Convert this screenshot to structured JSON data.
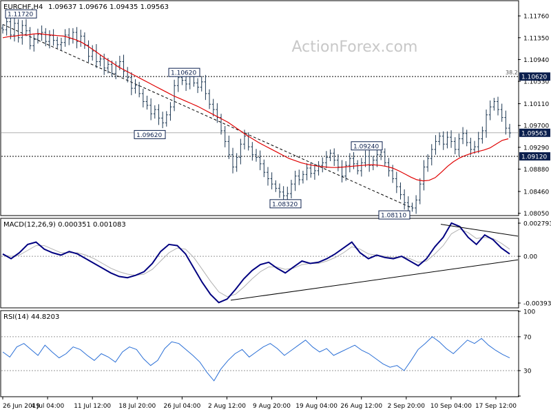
{
  "watermark": "ActionForex.com",
  "chart_data": [
    {
      "type": "candlestick",
      "title": "EURCHF,H4",
      "ohlc_label": "1.09637 1.09676 1.09435 1.09563",
      "ylim": [
        1.0802,
        1.1202
      ],
      "y_ticks": [
        "1.11760",
        "1.11350",
        "1.10940",
        "1.10530",
        "1.10110",
        "1.09700",
        "1.09290",
        "1.08880",
        "1.08460",
        "1.08050"
      ],
      "current_price": "1.09563",
      "levels": [
        {
          "label": "1.10620",
          "value": 1.1062,
          "fib": "38.2"
        },
        {
          "label": "1.09120",
          "value": 1.0912
        }
      ],
      "annotations": [
        {
          "text": "1.11720",
          "x": "26 Jun 2019",
          "value": 1.1172
        },
        {
          "text": "1.10620",
          "x": "26 Jul 04:00",
          "value": 1.1062
        },
        {
          "text": "1.09620",
          "x": "22 Jul 00:00",
          "value": 1.0962
        },
        {
          "text": "1.08320",
          "x": "9 Aug 20:00",
          "value": 1.0832
        },
        {
          "text": "1.09240",
          "x": "26 Aug 12:00",
          "value": 1.0924
        },
        {
          "text": "1.08110",
          "x": "2 Sep 20:00",
          "value": 1.0811
        }
      ],
      "close_series": [
        1.115,
        1.1165,
        1.114,
        1.1162,
        1.1135,
        1.1158,
        1.1148,
        1.112,
        1.1132,
        1.1141,
        1.1145,
        1.1128,
        1.1139,
        1.113,
        1.1122,
        1.1126,
        1.114,
        1.1133,
        1.1145,
        1.1128,
        1.1138,
        1.1121,
        1.11,
        1.111,
        1.109,
        1.1095,
        1.1078,
        1.1085,
        1.1068,
        1.1082,
        1.109,
        1.1072,
        1.106,
        1.104,
        1.1045,
        1.103,
        1.1015,
        1.1008,
        1.0992,
        1.1,
        1.0984,
        1.0975,
        1.099,
        1.1005,
        1.1045,
        1.106,
        1.1055,
        1.1048,
        1.1062,
        1.105,
        1.1042,
        1.1052,
        1.103,
        1.101,
        1.1,
        1.0985,
        1.096,
        1.094,
        1.0915,
        1.0892,
        1.091,
        1.0935,
        1.095,
        1.093,
        1.0915,
        1.091,
        1.0898,
        1.0882,
        1.087,
        1.086,
        1.0852,
        1.0845,
        1.0838,
        1.0842,
        1.086,
        1.0875,
        1.0868,
        1.0878,
        1.089,
        1.088,
        1.0885,
        1.0895,
        1.09,
        1.091,
        1.0918,
        1.0905,
        1.0892,
        1.0875,
        1.0895,
        1.0908,
        1.0898,
        1.0885,
        1.09,
        1.0912,
        1.0895,
        1.0905,
        1.0915,
        1.092,
        1.09,
        1.0885,
        1.087,
        1.0855,
        1.084,
        1.0825,
        1.0818,
        1.0815,
        1.083,
        1.086,
        1.0892,
        1.0908,
        1.0925,
        1.094,
        1.095,
        1.0935,
        1.0948,
        1.094,
        1.0925,
        1.0945,
        1.0955,
        1.0938,
        1.0925,
        1.093,
        1.0945,
        1.096,
        1.099,
        1.1005,
        1.1015,
        1.1,
        1.0985,
        1.0965,
        1.0956
      ],
      "ma_series": [
        1.1135,
        1.1137,
        1.1138,
        1.114,
        1.114,
        1.1142,
        1.1143,
        1.1141,
        1.114,
        1.1139,
        1.1138,
        1.1135,
        1.1131,
        1.1126,
        1.1119,
        1.1111,
        1.1103,
        1.1095,
        1.1088,
        1.108,
        1.1074,
        1.1068,
        1.1062,
        1.1056,
        1.105,
        1.1044,
        1.1038,
        1.1032,
        1.1026,
        1.1021,
        1.1016,
        1.1011,
        1.1006,
        1.1,
        1.0994,
        1.0988,
        1.0982,
        1.0976,
        1.0968,
        1.096,
        1.0952,
        1.0945,
        1.0938,
        1.0932,
        1.0926,
        1.092,
        1.0914,
        1.0908,
        1.0904,
        1.09,
        1.0897,
        1.0895,
        1.0893,
        1.0892,
        1.0891,
        1.0891,
        1.0892,
        1.0893,
        1.0894,
        1.0895,
        1.0896,
        1.0896,
        1.0895,
        1.0893,
        1.089,
        1.0885,
        1.0879,
        1.0873,
        1.0868,
        1.0866,
        1.0867,
        1.0872,
        1.0882,
        1.0893,
        1.0902,
        1.0909,
        1.0914,
        1.0918,
        1.0921,
        1.0924,
        1.0928,
        1.0935,
        1.0942,
        1.0945
      ],
      "ma_color": "#e00000",
      "candle_color": "#1a3550"
    },
    {
      "type": "line",
      "title": "MACD(12,26,9) 0.000351 0.001083",
      "y_ticks": [
        "0.002793",
        "0.00",
        "-0.003938"
      ],
      "ylim": [
        -0.003938,
        0.002793
      ],
      "macd_series": [
        0.0002,
        -0.0002,
        0.0003,
        0.001,
        0.0012,
        0.0006,
        0.0003,
        0.0001,
        0.0004,
        0.0002,
        -0.0002,
        -0.0006,
        -0.001,
        -0.0014,
        -0.0017,
        -0.0018,
        -0.0016,
        -0.0013,
        -0.0006,
        0.0004,
        0.001,
        0.0009,
        0.0002,
        -0.001,
        -0.0022,
        -0.0032,
        -0.0039,
        -0.0036,
        -0.0028,
        -0.0019,
        -0.0012,
        -0.0007,
        -0.0005,
        -0.001,
        -0.0014,
        -0.0009,
        -0.0004,
        -0.0006,
        -0.0005,
        -0.0002,
        0.0002,
        0.0007,
        0.0012,
        0.0003,
        -0.0002,
        0.0001,
        -0.0001,
        -0.0002,
        0.0,
        -0.0004,
        -0.0008,
        -0.0002,
        0.0008,
        0.0016,
        0.0028,
        0.0025,
        0.0016,
        0.001,
        0.0018,
        0.0014,
        0.0007,
        0.0002
      ],
      "signal_series": [
        0.0001,
        0.0,
        0.0001,
        0.0005,
        0.0009,
        0.0009,
        0.0006,
        0.0003,
        0.0003,
        0.0003,
        0.0001,
        -0.0002,
        -0.0006,
        -0.001,
        -0.0013,
        -0.0015,
        -0.0016,
        -0.0015,
        -0.0011,
        -0.0004,
        0.0003,
        0.0007,
        0.0006,
        -0.0001,
        -0.0011,
        -0.0021,
        -0.003,
        -0.0034,
        -0.0032,
        -0.0026,
        -0.0019,
        -0.0013,
        -0.0009,
        -0.0009,
        -0.0011,
        -0.001,
        -0.0007,
        -0.0006,
        -0.0006,
        -0.0004,
        -0.0001,
        0.0003,
        0.0008,
        0.0006,
        0.0002,
        0.0001,
        0.0,
        -0.0001,
        0.0,
        -0.0002,
        -0.0005,
        -0.0004,
        0.0002,
        0.0009,
        0.0019,
        0.0023,
        0.002,
        0.0015,
        0.0016,
        0.0015,
        0.0011,
        0.0006
      ],
      "macd_color": "#000080",
      "signal_color": "#b0b0b0"
    },
    {
      "type": "line",
      "title": "RSI(14) 44.8203",
      "y_ticks": [
        "100",
        "70",
        "30",
        "0"
      ],
      "ylim": [
        0,
        100
      ],
      "rsi_series": [
        52,
        46,
        58,
        62,
        55,
        48,
        60,
        52,
        45,
        50,
        58,
        55,
        48,
        42,
        50,
        46,
        40,
        52,
        58,
        55,
        44,
        36,
        42,
        56,
        64,
        62,
        55,
        48,
        40,
        28,
        18,
        32,
        42,
        50,
        55,
        46,
        52,
        58,
        62,
        56,
        48,
        54,
        60,
        66,
        58,
        52,
        56,
        48,
        52,
        56,
        60,
        54,
        50,
        44,
        38,
        34,
        36,
        30,
        42,
        55,
        62,
        70,
        64,
        56,
        50,
        58,
        66,
        62,
        68,
        60,
        54,
        49,
        45
      ],
      "rsi_color": "#2a6fd6"
    }
  ],
  "x_labels": [
    "26 Jun 2019",
    "4 Jul 04:00",
    "11 Jul 12:00",
    "18 Jul 20:00",
    "26 Jul 04:00",
    "2 Aug 12:00",
    "9 Aug 20:00",
    "19 Aug 04:00",
    "26 Aug 12:00",
    "2 Sep 20:00",
    "10 Sep 04:00",
    "17 Sep 12:00"
  ]
}
